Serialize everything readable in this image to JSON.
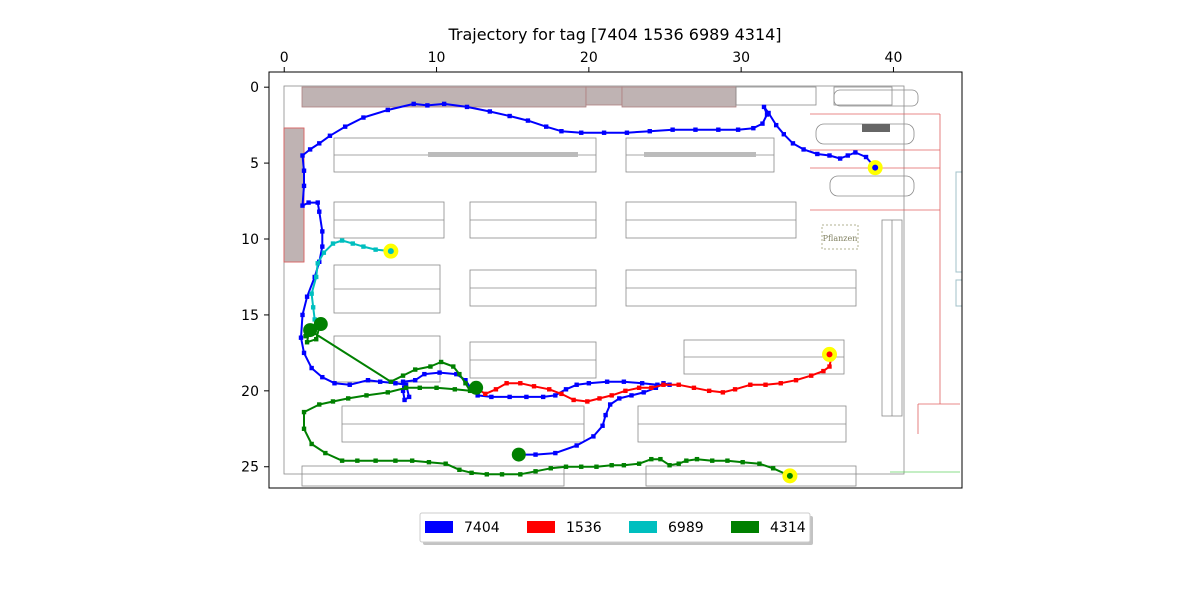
{
  "chart_data": {
    "type": "line",
    "title": "Trajectory for tag [7404 1536 6989 4314]",
    "xlabel": "",
    "ylabel": "",
    "xlim": [
      -1,
      44.5
    ],
    "ylim": [
      26.4,
      -1
    ],
    "x_ticks": [
      0,
      10,
      20,
      30,
      40
    ],
    "y_ticks": [
      0,
      5,
      10,
      15,
      20,
      25
    ],
    "x_axis_position": "top",
    "y_inverted": true,
    "grid": false,
    "legend_position": "bottom-center",
    "background": "warehouse floor plan",
    "floorplan_text": "Pflanzen",
    "series": [
      {
        "name": "7404",
        "color": "#0000ff",
        "start": [
          15.4,
          24.2
        ],
        "end": [
          38.8,
          5.3
        ],
        "points": [
          [
            15.4,
            24.2
          ],
          [
            16.5,
            24.2
          ],
          [
            17.8,
            24.1
          ],
          [
            19.2,
            23.6
          ],
          [
            20.3,
            23.0
          ],
          [
            20.9,
            22.3
          ],
          [
            21.1,
            21.6
          ],
          [
            21.4,
            20.9
          ],
          [
            22.0,
            20.5
          ],
          [
            22.8,
            20.3
          ],
          [
            23.6,
            20.1
          ],
          [
            24.4,
            19.8
          ],
          [
            24.9,
            19.5
          ],
          [
            25.3,
            19.6
          ],
          [
            24.5,
            19.6
          ],
          [
            23.5,
            19.5
          ],
          [
            22.3,
            19.4
          ],
          [
            21.2,
            19.4
          ],
          [
            20.0,
            19.5
          ],
          [
            19.2,
            19.6
          ],
          [
            18.5,
            19.9
          ],
          [
            17.8,
            20.3
          ],
          [
            17.0,
            20.4
          ],
          [
            15.9,
            20.4
          ],
          [
            14.8,
            20.4
          ],
          [
            13.6,
            20.4
          ],
          [
            12.7,
            20.3
          ],
          [
            12.3,
            19.9
          ],
          [
            11.9,
            19.3
          ],
          [
            11.3,
            18.9
          ],
          [
            10.2,
            18.8
          ],
          [
            9.2,
            18.9
          ],
          [
            8.6,
            19.3
          ],
          [
            7.8,
            19.4
          ],
          [
            7.8,
            20.0
          ],
          [
            7.9,
            20.6
          ],
          [
            8.2,
            20.4
          ],
          [
            8.0,
            19.6
          ],
          [
            7.3,
            19.5
          ],
          [
            6.3,
            19.4
          ],
          [
            5.5,
            19.3
          ],
          [
            4.3,
            19.6
          ],
          [
            3.3,
            19.5
          ],
          [
            2.5,
            19.1
          ],
          [
            1.8,
            18.5
          ],
          [
            1.3,
            17.5
          ],
          [
            1.1,
            16.5
          ],
          [
            1.2,
            15.0
          ],
          [
            1.5,
            13.8
          ],
          [
            2.0,
            12.5
          ],
          [
            2.3,
            11.5
          ],
          [
            2.5,
            10.5
          ],
          [
            2.5,
            9.5
          ],
          [
            2.3,
            8.2
          ],
          [
            2.2,
            7.6
          ],
          [
            1.6,
            7.6
          ],
          [
            1.2,
            7.8
          ],
          [
            1.3,
            6.5
          ],
          [
            1.3,
            5.5
          ],
          [
            1.2,
            4.5
          ],
          [
            1.7,
            4.1
          ],
          [
            2.3,
            3.7
          ],
          [
            3.0,
            3.2
          ],
          [
            4.0,
            2.6
          ],
          [
            5.2,
            2.0
          ],
          [
            6.8,
            1.5
          ],
          [
            8.5,
            1.1
          ],
          [
            9.4,
            1.2
          ],
          [
            10.5,
            1.1
          ],
          [
            12.0,
            1.3
          ],
          [
            13.5,
            1.6
          ],
          [
            14.8,
            1.9
          ],
          [
            16.0,
            2.2
          ],
          [
            17.2,
            2.6
          ],
          [
            18.2,
            2.9
          ],
          [
            19.5,
            3.0
          ],
          [
            21.0,
            3.0
          ],
          [
            22.5,
            3.0
          ],
          [
            24.0,
            2.9
          ],
          [
            25.5,
            2.8
          ],
          [
            27.0,
            2.8
          ],
          [
            28.5,
            2.8
          ],
          [
            29.8,
            2.8
          ],
          [
            30.8,
            2.7
          ],
          [
            31.4,
            2.4
          ],
          [
            31.7,
            1.8
          ],
          [
            31.5,
            1.3
          ],
          [
            31.8,
            1.7
          ],
          [
            32.3,
            2.5
          ],
          [
            32.8,
            3.1
          ],
          [
            33.4,
            3.7
          ],
          [
            34.1,
            4.1
          ],
          [
            35.0,
            4.4
          ],
          [
            35.8,
            4.5
          ],
          [
            36.5,
            4.7
          ],
          [
            37.0,
            4.5
          ],
          [
            37.5,
            4.3
          ],
          [
            38.2,
            4.6
          ],
          [
            38.8,
            5.3
          ]
        ]
      },
      {
        "name": "1536",
        "color": "#ff0000",
        "start": [
          12.6,
          19.8
        ],
        "end": [
          35.8,
          17.6
        ],
        "points": [
          [
            12.6,
            19.8
          ],
          [
            13.2,
            20.2
          ],
          [
            13.9,
            19.9
          ],
          [
            14.6,
            19.5
          ],
          [
            15.5,
            19.5
          ],
          [
            16.4,
            19.7
          ],
          [
            17.4,
            19.9
          ],
          [
            18.2,
            20.2
          ],
          [
            19.0,
            20.6
          ],
          [
            19.9,
            20.7
          ],
          [
            20.7,
            20.5
          ],
          [
            21.5,
            20.3
          ],
          [
            22.4,
            20.0
          ],
          [
            23.3,
            19.8
          ],
          [
            24.1,
            19.8
          ],
          [
            24.9,
            19.6
          ],
          [
            25.9,
            19.6
          ],
          [
            26.9,
            19.8
          ],
          [
            27.9,
            20.0
          ],
          [
            28.8,
            20.1
          ],
          [
            29.6,
            19.9
          ],
          [
            30.6,
            19.6
          ],
          [
            31.6,
            19.6
          ],
          [
            32.6,
            19.5
          ],
          [
            33.6,
            19.3
          ],
          [
            34.6,
            19.0
          ],
          [
            35.4,
            18.7
          ],
          [
            35.8,
            18.4
          ],
          [
            35.9,
            17.9
          ],
          [
            35.8,
            17.6
          ]
        ]
      },
      {
        "name": "6989",
        "color": "#00bfbf",
        "start": [
          2.4,
          15.6
        ],
        "end": [
          7.0,
          10.8
        ],
        "points": [
          [
            2.4,
            15.6
          ],
          [
            2.0,
            15.3
          ],
          [
            1.9,
            14.5
          ],
          [
            1.8,
            13.6
          ],
          [
            2.1,
            12.5
          ],
          [
            2.2,
            11.6
          ],
          [
            2.6,
            10.9
          ],
          [
            3.2,
            10.3
          ],
          [
            3.8,
            10.1
          ],
          [
            4.5,
            10.3
          ],
          [
            5.2,
            10.5
          ],
          [
            6.0,
            10.7
          ],
          [
            7.0,
            10.8
          ]
        ]
      },
      {
        "name": "4314",
        "color": "#008000",
        "start": [
          1.7,
          16.0
        ],
        "end": [
          33.2,
          25.6
        ],
        "points": [
          [
            1.7,
            16.0
          ],
          [
            1.4,
            16.4
          ],
          [
            2.3,
            15.8
          ],
          [
            2.1,
            16.6
          ],
          [
            1.5,
            16.8
          ],
          [
            1.6,
            16.2
          ],
          [
            1.7,
            16.0
          ],
          [
            1.5,
            15.9
          ],
          [
            7.0,
            19.4
          ],
          [
            7.8,
            19.0
          ],
          [
            8.6,
            18.6
          ],
          [
            9.6,
            18.4
          ],
          [
            10.3,
            18.1
          ],
          [
            11.1,
            18.4
          ],
          [
            11.5,
            18.9
          ],
          [
            11.9,
            19.5
          ],
          [
            12.2,
            20.0
          ],
          [
            11.2,
            19.9
          ],
          [
            10.0,
            19.8
          ],
          [
            8.9,
            19.8
          ],
          [
            8.0,
            19.8
          ],
          [
            6.8,
            20.1
          ],
          [
            5.4,
            20.3
          ],
          [
            4.2,
            20.5
          ],
          [
            3.2,
            20.7
          ],
          [
            2.3,
            20.9
          ],
          [
            1.3,
            21.4
          ],
          [
            1.3,
            22.5
          ],
          [
            1.8,
            23.5
          ],
          [
            2.7,
            24.1
          ],
          [
            3.8,
            24.6
          ],
          [
            4.8,
            24.6
          ],
          [
            6.0,
            24.6
          ],
          [
            7.3,
            24.6
          ],
          [
            8.4,
            24.6
          ],
          [
            9.5,
            24.7
          ],
          [
            10.6,
            24.8
          ],
          [
            11.5,
            25.2
          ],
          [
            12.3,
            25.4
          ],
          [
            13.3,
            25.5
          ],
          [
            14.3,
            25.5
          ],
          [
            15.5,
            25.5
          ],
          [
            16.5,
            25.3
          ],
          [
            17.5,
            25.1
          ],
          [
            18.5,
            25.0
          ],
          [
            19.5,
            25.0
          ],
          [
            20.5,
            25.0
          ],
          [
            21.5,
            24.9
          ],
          [
            22.3,
            24.9
          ],
          [
            23.3,
            24.8
          ],
          [
            24.1,
            24.5
          ],
          [
            24.7,
            24.5
          ],
          [
            25.3,
            24.9
          ],
          [
            25.9,
            24.8
          ],
          [
            26.4,
            24.6
          ],
          [
            27.1,
            24.5
          ],
          [
            28.1,
            24.6
          ],
          [
            29.1,
            24.6
          ],
          [
            30.1,
            24.7
          ],
          [
            31.2,
            24.8
          ],
          [
            32.1,
            25.1
          ],
          [
            33.2,
            25.6
          ]
        ]
      }
    ]
  }
}
